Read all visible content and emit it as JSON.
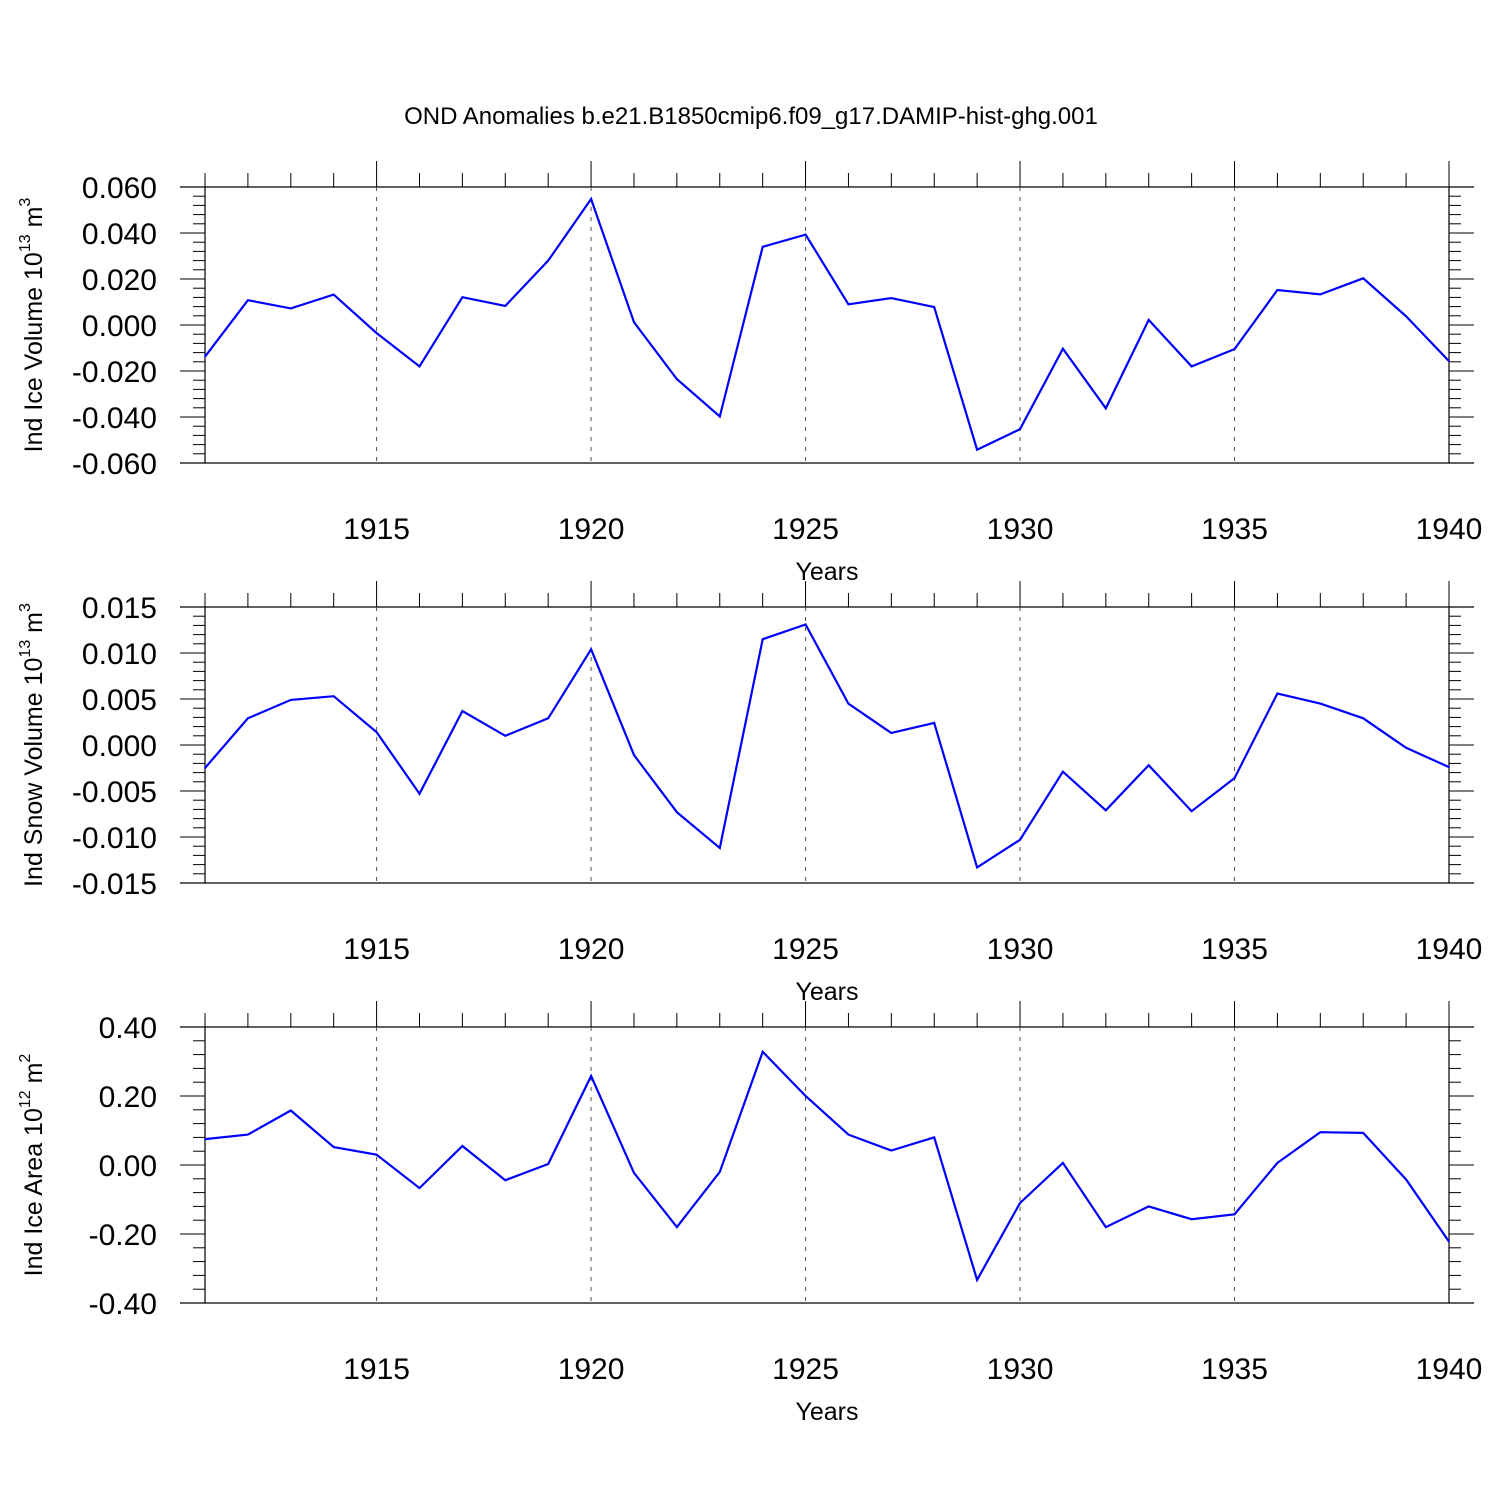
{
  "figure_title": "OND Anomalies b.e21.B1850cmip6.f09_g17.DAMIP-hist-ghg.001",
  "colors": {
    "series": "#0000ff",
    "axis": "#000000",
    "grid": "#555555"
  },
  "chart_data": [
    {
      "type": "line",
      "xlabel": "Years",
      "ylabel": {
        "prefix": "Ind Ice Volume 10",
        "exp": "13",
        "unit": " m",
        "unit_exp": "3"
      },
      "xlim": [
        1911,
        1940
      ],
      "ylim": [
        -0.06,
        0.06
      ],
      "xticks": [
        1915,
        1920,
        1925,
        1930,
        1935,
        1940
      ],
      "yticks": [
        -0.06,
        -0.04,
        -0.02,
        0.0,
        0.02,
        0.04,
        0.06
      ],
      "ytick_labels": [
        "-0.060",
        "-0.040",
        "-0.020",
        "0.000",
        "0.020",
        "0.040",
        "0.060"
      ],
      "grid": "vertical dashed at major x ticks",
      "x": [
        1911,
        1912,
        1913,
        1914,
        1915,
        1916,
        1917,
        1918,
        1919,
        1920,
        1921,
        1922,
        1923,
        1924,
        1925,
        1926,
        1927,
        1928,
        1929,
        1930,
        1931,
        1932,
        1933,
        1934,
        1935,
        1936,
        1937,
        1938,
        1939,
        1940
      ],
      "y": [
        -0.0138,
        0.0108,
        0.0072,
        0.0132,
        -0.0035,
        -0.018,
        0.0121,
        0.0083,
        0.028,
        0.0548,
        0.0012,
        -0.0235,
        -0.0398,
        0.034,
        0.0393,
        0.009,
        0.0117,
        0.0078,
        -0.0542,
        -0.0453,
        -0.0103,
        -0.0362,
        0.0022,
        -0.018,
        -0.0105,
        0.0152,
        0.0133,
        0.0203,
        0.0038,
        -0.0157
      ]
    },
    {
      "type": "line",
      "xlabel": "Years",
      "ylabel": {
        "prefix": "Ind Snow Volume 10",
        "exp": "13",
        "unit": " m",
        "unit_exp": "3"
      },
      "xlim": [
        1911,
        1940
      ],
      "ylim": [
        -0.015,
        0.015
      ],
      "xticks": [
        1915,
        1920,
        1925,
        1930,
        1935,
        1940
      ],
      "yticks": [
        -0.015,
        -0.01,
        -0.005,
        0.0,
        0.005,
        0.01,
        0.015
      ],
      "ytick_labels": [
        "-0.015",
        "-0.010",
        "-0.005",
        "0.000",
        "0.005",
        "0.010",
        "0.015"
      ],
      "grid": "vertical dashed at major x ticks",
      "x": [
        1911,
        1912,
        1913,
        1914,
        1915,
        1916,
        1917,
        1918,
        1919,
        1920,
        1921,
        1922,
        1923,
        1924,
        1925,
        1926,
        1927,
        1928,
        1929,
        1930,
        1931,
        1932,
        1933,
        1934,
        1935,
        1936,
        1937,
        1938,
        1939,
        1940
      ],
      "y": [
        -0.0025,
        0.0029,
        0.0049,
        0.0053,
        0.0014,
        -0.0053,
        0.0037,
        0.001,
        0.0029,
        0.0104,
        -0.0011,
        -0.0073,
        -0.0112,
        0.0115,
        0.0131,
        0.0045,
        0.0013,
        0.0024,
        -0.0133,
        -0.0103,
        -0.0029,
        -0.0071,
        -0.0022,
        -0.0072,
        -0.0036,
        0.0056,
        0.0045,
        0.0029,
        -0.0003,
        -0.0024
      ]
    },
    {
      "type": "line",
      "xlabel": "Years",
      "ylabel": {
        "prefix": "Ind Ice Area 10",
        "exp": "12",
        "unit": " m",
        "unit_exp": "2"
      },
      "xlim": [
        1911,
        1940
      ],
      "ylim": [
        -0.4,
        0.4
      ],
      "xticks": [
        1915,
        1920,
        1925,
        1930,
        1935,
        1940
      ],
      "yticks": [
        -0.4,
        -0.2,
        0.0,
        0.2,
        0.4
      ],
      "ytick_labels": [
        "-0.40",
        "-0.20",
        "0.00",
        "0.20",
        "0.40"
      ],
      "grid": "vertical dashed at major x ticks",
      "x": [
        1911,
        1912,
        1913,
        1914,
        1915,
        1916,
        1917,
        1918,
        1919,
        1920,
        1921,
        1922,
        1923,
        1924,
        1925,
        1926,
        1927,
        1928,
        1929,
        1930,
        1931,
        1932,
        1933,
        1934,
        1935,
        1936,
        1937,
        1938,
        1939,
        1940
      ],
      "y": [
        0.075,
        0.088,
        0.158,
        0.052,
        0.03,
        -0.067,
        0.055,
        -0.044,
        0.003,
        0.258,
        -0.023,
        -0.18,
        -0.02,
        0.328,
        0.2,
        0.088,
        0.042,
        0.08,
        -0.333,
        -0.11,
        0.006,
        -0.18,
        -0.12,
        -0.157,
        -0.143,
        0.006,
        0.095,
        0.093,
        -0.042,
        -0.222
      ]
    }
  ]
}
